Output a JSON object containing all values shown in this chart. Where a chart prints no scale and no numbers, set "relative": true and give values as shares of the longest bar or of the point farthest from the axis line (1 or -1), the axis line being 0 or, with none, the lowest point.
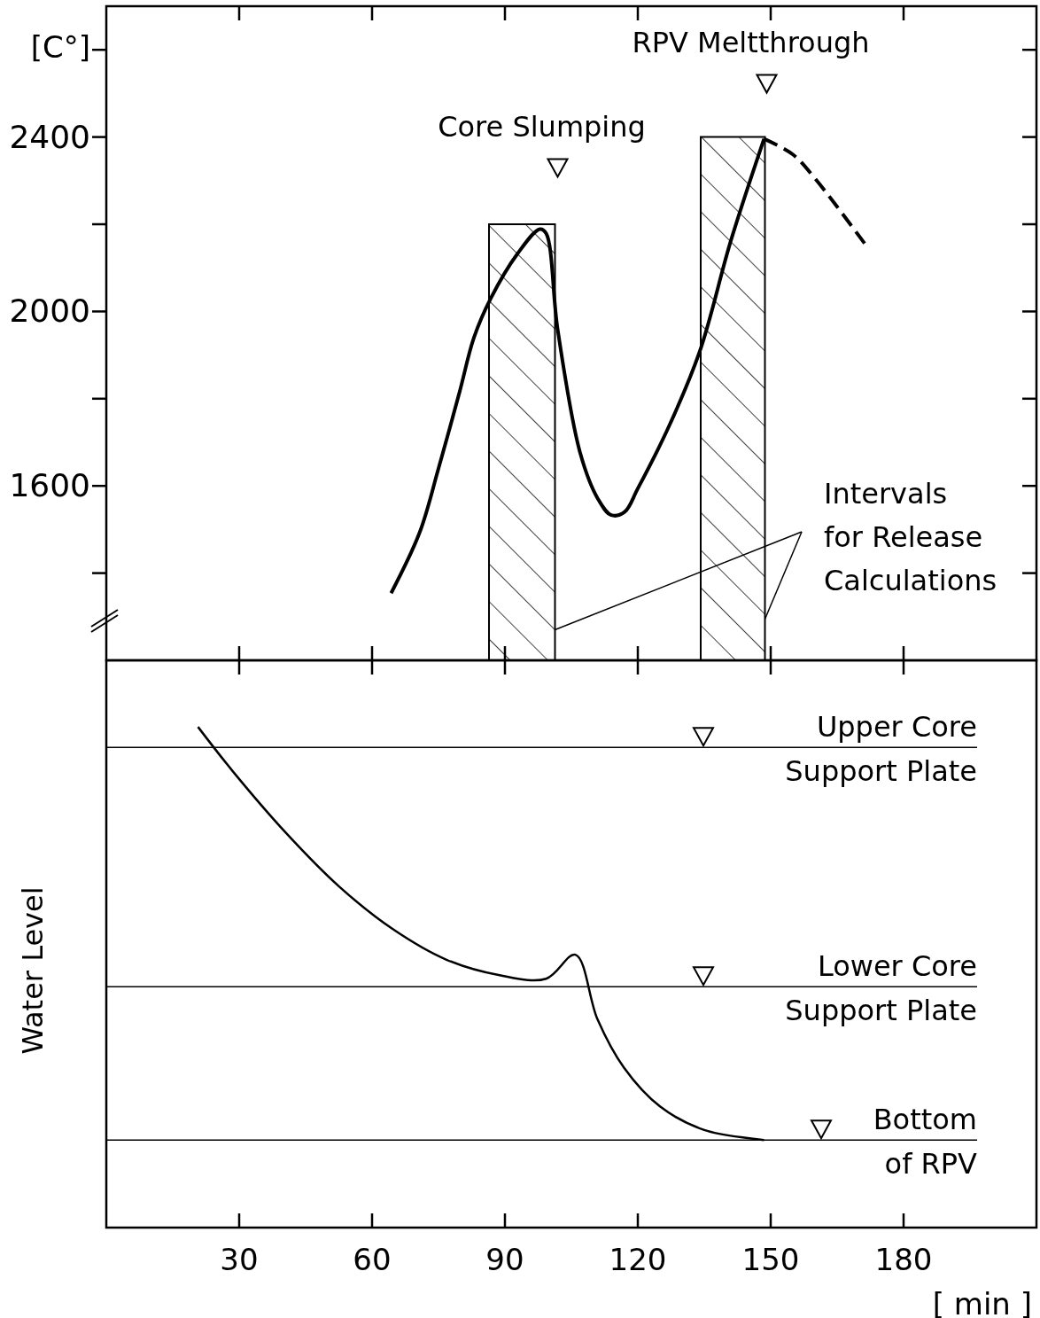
{
  "chart_data": [
    {
      "type": "line",
      "ylabel": "[C°]",
      "xlim": [
        0,
        210
      ],
      "xticks": [
        {
          "value": 30,
          "label": null
        },
        {
          "value": 60,
          "label": null
        },
        {
          "value": 90,
          "label": null
        },
        {
          "value": 120,
          "label": null
        },
        {
          "value": 150,
          "label": null
        },
        {
          "value": 180,
          "label": null
        }
      ],
      "ylim": [
        1200,
        2700
      ],
      "yticks": [
        {
          "value": 1400,
          "label": null
        },
        1600,
        {
          "value": 1800,
          "label": null
        },
        2000,
        {
          "value": 2200,
          "label": null
        },
        2400,
        {
          "value": 2600,
          "label": null
        }
      ],
      "tick_labels": "y",
      "series": [
        {
          "type": "area",
          "color": "#000000",
          "x": [
            86.4,
            101.3
          ],
          "values": [
            2200,
            2200
          ]
        },
        {
          "type": "area",
          "color": "#000000",
          "x": [
            134.2,
            148.7
          ],
          "values": [
            2400,
            2400
          ]
        },
        {
          "color": "#000000",
          "line_style": "solid",
          "x": [
            64.3,
            70.7,
            75,
            79.8,
            83,
            86.8,
            92.8,
            97.9,
            99.3,
            101.9,
            107,
            111,
            114,
            117,
            120,
            127,
            134,
            141,
            148.5
          ],
          "values": [
            1354,
            1492,
            1640,
            1817,
            1940,
            2030,
            2132,
            2189,
            2179,
            1959,
            1675,
            1570,
            1533,
            1540,
            1594,
            1736,
            1909,
            2162,
            2396
          ]
        },
        {
          "color": "#000000",
          "line_style": "dashed",
          "x": [
            148.5,
            155,
            160,
            165,
            171.2
          ],
          "values": [
            2396,
            2360,
            2305,
            2240,
            2156
          ]
        }
      ],
      "annotations": [
        {
          "text": "Core Slumping",
          "x": 101.9,
          "y": 2329
        },
        {
          "text": "RPV Meltthrough",
          "x": 149.1,
          "y": 2522
        },
        {
          "text": "Intervals for Release Calculations",
          "x": 101.3,
          "y": 1270
        }
      ]
    },
    {
      "type": "line",
      "relative": true,
      "xlabel": "[ min ]",
      "ylabel": "Water Level",
      "xlim": [
        0,
        210
      ],
      "xticks": [
        30,
        60,
        90,
        120,
        150,
        180
      ],
      "tick_labels": "x",
      "series": [
        {
          "color": "#000000",
          "x": [
            20.7,
            28.5,
            40.6,
            52.6,
            64.7,
            76.8,
            88.8,
            99.3,
            105.9,
            110.9,
            116.9,
            125,
            135,
            148.5
          ],
          "values": [
            1.0,
            0.912,
            0.788,
            0.681,
            0.596,
            0.535,
            0.504,
            0.497,
            0.545,
            0.416,
            0.319,
            0.242,
            0.195,
            0.175
          ]
        }
      ],
      "ref_lines": [
        {
          "axis": "y",
          "value": 0.959,
          "label": "Upper Core Support Plate",
          "color": "#000000"
        },
        {
          "axis": "y",
          "value": 0.481,
          "label": "Lower Core Support Plate",
          "color": "#000000"
        },
        {
          "axis": "y",
          "value": 0.175,
          "label": "Bottom of RPV",
          "color": "#000000"
        }
      ]
    }
  ]
}
